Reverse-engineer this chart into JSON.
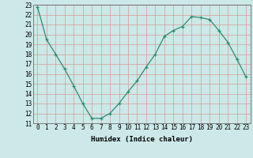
{
  "x": [
    0,
    1,
    2,
    3,
    4,
    5,
    6,
    7,
    8,
    9,
    10,
    11,
    12,
    13,
    14,
    15,
    16,
    17,
    18,
    19,
    20,
    21,
    22,
    23
  ],
  "y": [
    22.8,
    19.5,
    18.0,
    16.5,
    14.8,
    13.0,
    11.5,
    11.5,
    12.0,
    13.0,
    14.2,
    15.3,
    16.7,
    18.0,
    19.8,
    20.4,
    20.8,
    21.8,
    21.7,
    21.5,
    20.4,
    19.2,
    17.5,
    15.7
  ],
  "line_color": "#2e8b6e",
  "marker": "+",
  "marker_size": 3,
  "bg_color": "#cce8e8",
  "grid_color": "#d89898",
  "xlabel": "Humidex (Indice chaleur)",
  "xlim": [
    -0.5,
    23.5
  ],
  "ylim": [
    11,
    23
  ],
  "yticks": [
    11,
    12,
    13,
    14,
    15,
    16,
    17,
    18,
    19,
    20,
    21,
    22,
    23
  ],
  "xticks": [
    0,
    1,
    2,
    3,
    4,
    5,
    6,
    7,
    8,
    9,
    10,
    11,
    12,
    13,
    14,
    15,
    16,
    17,
    18,
    19,
    20,
    21,
    22,
    23
  ],
  "font_size": 5.5,
  "xlabel_fontsize": 6.5,
  "linewidth": 0.9,
  "markeredgewidth": 0.9
}
